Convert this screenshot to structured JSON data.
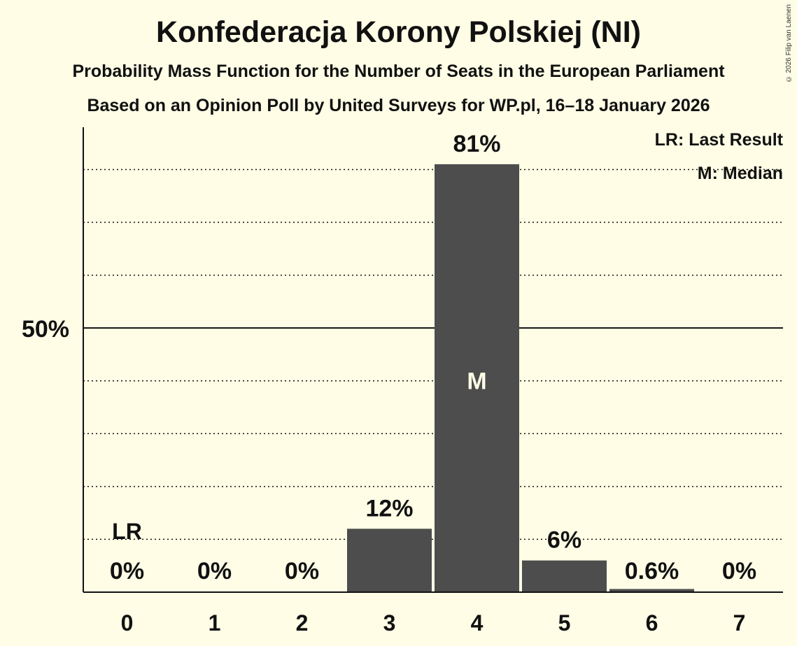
{
  "title": "Konfederacja Korony Polskiej (NI)",
  "subtitle1": "Probability Mass Function for the Number of Seats in the European Parliament",
  "subtitle2": "Based on an Opinion Poll by United Surveys for WP.pl, 16–18 January 2026",
  "copyright": "© 2026 Filip van Laenen",
  "legend": {
    "last_result": "LR: Last Result",
    "median": "M: Median"
  },
  "chart_data": {
    "type": "bar",
    "categories": [
      "0",
      "1",
      "2",
      "3",
      "4",
      "5",
      "6",
      "7"
    ],
    "values": [
      0,
      0,
      0,
      12,
      81,
      6,
      0.6,
      0
    ],
    "data_labels": [
      "0%",
      "0%",
      "0%",
      "12%",
      "81%",
      "6%",
      "0.6%",
      "0%"
    ],
    "ylim": [
      0,
      88
    ],
    "y_ticks": [
      {
        "value": 50,
        "label": "50%"
      }
    ],
    "gridlines": [
      10,
      20,
      30,
      40,
      60,
      70,
      80
    ],
    "last_result_index": 0,
    "last_result_label": "LR",
    "median_index": 4,
    "median_label": "M",
    "bar_color": "#4d4d4d",
    "background": "#fffde6"
  }
}
